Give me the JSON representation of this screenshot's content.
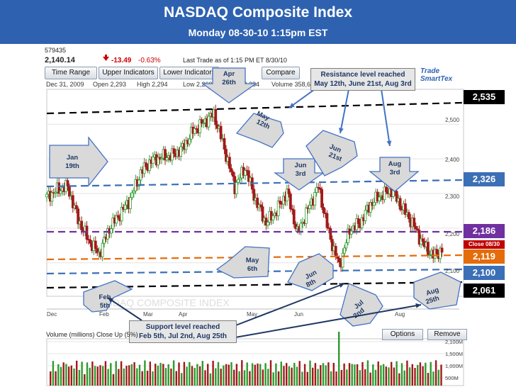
{
  "header": {
    "title": "NASDAQ Composite Index",
    "subtitle": "Monday  08-30-10   1:15pm EST"
  },
  "toolbar": {
    "symbol_id": "579435",
    "last_value": "2,140.14",
    "change": "-13.49",
    "change_pct": "-0.63%",
    "last_trade": "Last Trade as of 1:15 PM ET 8/30/10",
    "buttons": [
      "Time Range",
      "Upper Indicators",
      "Lower Indicators",
      "Compare"
    ],
    "info": [
      "Dec 31, 2009",
      "Open 2,293",
      "High 2,294",
      "Low 2,269",
      "Close 2,284",
      "Volume 358,62"
    ],
    "brand": "Trade SmartTex"
  },
  "levels": [
    {
      "value": "2,535",
      "color": "#000000",
      "style": "dashed-black"
    },
    {
      "value": "2,326",
      "color": "#3b6fb6",
      "style": "dashed-blue"
    },
    {
      "value": "2,186",
      "color": "#7030a0",
      "style": "dashed-purple"
    },
    {
      "value": "2,119",
      "color": "#e46c0a",
      "style": "dashed-orange"
    },
    {
      "value": "2,100",
      "color": "#3b6fb6",
      "style": "dashed-blue"
    },
    {
      "value": "2,061",
      "color": "#000000",
      "style": "dashed-black"
    }
  ],
  "close_label": "Close 08/30",
  "y_ticks": [
    "2,500",
    "2,400",
    "2,300",
    "2,200",
    "2,100"
  ],
  "x_months": [
    "Dec",
    "Feb",
    "Mar",
    "Apr",
    "May",
    "Jun",
    "Aug"
  ],
  "watermark": "NASDAQ COMPOSITE INDEX",
  "annotations": {
    "jan19": [
      "Jan",
      "19th"
    ],
    "feb5": [
      "Feb",
      "5th"
    ],
    "apr26": [
      "Apr",
      "26th"
    ],
    "may12": [
      "May",
      "12th"
    ],
    "may6": [
      "May",
      "6th"
    ],
    "jun3": [
      "Jun",
      "3rd"
    ],
    "jun21": [
      "Jun",
      "21st"
    ],
    "jun8": [
      "Jun",
      "8th"
    ],
    "jul2": [
      "Jul",
      "2nd"
    ],
    "aug3": [
      "Aug",
      "3rd"
    ],
    "aug25": [
      "Aug",
      "25th"
    ],
    "resistance": [
      "Resistance level reached",
      "May 12th,  June 21st,  Aug 3rd"
    ],
    "support": [
      "Support level reached",
      "Feb 5th,  Jul 2nd,  Aug 25th"
    ]
  },
  "volume": {
    "label": "Volume",
    "sub_label": "(millions) Close Up (5%)",
    "buttons": [
      "Options",
      "Remove"
    ],
    "y_ticks": [
      "2,100M",
      "1,500M",
      "1,000M",
      "500M"
    ]
  },
  "chart_data": {
    "type": "line",
    "title": "NASDAQ Composite Index",
    "x": [
      "Jan 4",
      "Jan 11",
      "Jan 19",
      "Jan 25",
      "Feb 1",
      "Feb 5",
      "Feb 12",
      "Feb 22",
      "Mar 1",
      "Mar 8",
      "Mar 15",
      "Mar 22",
      "Mar 29",
      "Apr 5",
      "Apr 12",
      "Apr 19",
      "Apr 26",
      "May 3",
      "May 6",
      "May 12",
      "May 17",
      "May 24",
      "Jun 1",
      "Jun 3",
      "Jun 8",
      "Jun 14",
      "Jun 21",
      "Jun 28",
      "Jul 2",
      "Jul 9",
      "Jul 16",
      "Jul 23",
      "Jul 30",
      "Aug 3",
      "Aug 9",
      "Aug 16",
      "Aug 23",
      "Aug 25",
      "Aug 30"
    ],
    "series": [
      {
        "values": [
          2290,
          2310,
          2320,
          2225,
          2165,
          2125,
          2200,
          2240,
          2285,
          2360,
          2395,
          2405,
          2410,
          2430,
          2480,
          2505,
          2530,
          2430,
          2320,
          2375,
          2280,
          2215,
          2250,
          2305,
          2185,
          2255,
          2320,
          2185,
          2090,
          2195,
          2215,
          2270,
          2295,
          2310,
          2260,
          2215,
          2155,
          2120,
          2140
        ]
      }
    ],
    "ylim": [
      2040,
      2560
    ],
    "support_resistance": [
      2535,
      2326,
      2186,
      2119,
      2100,
      2061
    ]
  }
}
